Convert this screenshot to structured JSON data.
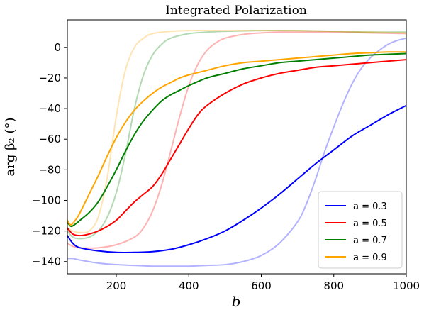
{
  "chart_data": {
    "type": "line",
    "title": "Integrated Polarization",
    "xlabel": "b",
    "ylabel": "arg β₂ (°)",
    "xlim": [
      65,
      1000
    ],
    "ylim": [
      -148,
      18
    ],
    "xticks": [
      200,
      400,
      600,
      800,
      1000
    ],
    "yticks": [
      0,
      -20,
      -40,
      -60,
      -80,
      -100,
      -120,
      -140
    ],
    "legend_position": "lower-right",
    "series": [
      {
        "name": "a = 0.3",
        "color": "#0000ff",
        "opacity": 1,
        "x": [
          65,
          80,
          100,
          150,
          200,
          250,
          300,
          350,
          400,
          450,
          500,
          550,
          600,
          650,
          700,
          750,
          800,
          850,
          900,
          950,
          1000
        ],
        "y": [
          -123,
          -128,
          -131,
          -133,
          -134,
          -134,
          -133.5,
          -132,
          -129,
          -125,
          -120,
          -113,
          -105,
          -96,
          -86,
          -76,
          -67,
          -58,
          -51,
          -44,
          -38
        ]
      },
      {
        "name": "a = 0.5",
        "color": "#ff0000",
        "opacity": 1,
        "x": [
          65,
          80,
          100,
          125,
          150,
          175,
          200,
          225,
          250,
          275,
          300,
          325,
          350,
          375,
          400,
          425,
          450,
          500,
          550,
          600,
          650,
          700,
          750,
          800,
          850,
          900,
          950,
          1000
        ],
        "y": [
          -118,
          -122,
          -123,
          -122,
          -120,
          -117,
          -113,
          -107,
          -101,
          -96,
          -91,
          -83,
          -73,
          -63,
          -53,
          -44,
          -38,
          -30,
          -24,
          -20,
          -17,
          -15,
          -13,
          -12,
          -11,
          -10,
          -9,
          -8
        ]
      },
      {
        "name": "a = 0.7",
        "color": "#008000",
        "opacity": 1,
        "x": [
          65,
          75,
          90,
          100,
          125,
          150,
          175,
          200,
          225,
          250,
          275,
          300,
          325,
          350,
          375,
          400,
          450,
          500,
          550,
          600,
          650,
          700,
          750,
          800,
          850,
          900,
          950,
          1000
        ],
        "y": [
          -114,
          -117,
          -115,
          -113,
          -108,
          -101,
          -91,
          -80,
          -68,
          -57,
          -48,
          -41,
          -35,
          -31,
          -28,
          -25,
          -20,
          -17,
          -14,
          -12,
          -10,
          -9,
          -8,
          -7,
          -6,
          -5,
          -4.5,
          -4
        ]
      },
      {
        "name": "a = 0.9",
        "color": "#ffa500",
        "opacity": 1,
        "x": [
          65,
          75,
          90,
          100,
          125,
          150,
          175,
          200,
          225,
          250,
          275,
          300,
          325,
          350,
          375,
          400,
          450,
          500,
          550,
          600,
          650,
          700,
          750,
          800,
          850,
          900,
          950,
          1000
        ],
        "y": [
          -113,
          -116,
          -112,
          -108,
          -96,
          -84,
          -71,
          -59,
          -49,
          -41,
          -35,
          -30,
          -26,
          -23,
          -20,
          -18,
          -15,
          -12,
          -10,
          -9,
          -8,
          -7,
          -6,
          -5,
          -4,
          -3.5,
          -3,
          -3
        ]
      },
      {
        "color": "#0000ff",
        "opacity": 0.3,
        "x": [
          65,
          80,
          100,
          150,
          200,
          250,
          300,
          350,
          400,
          450,
          500,
          550,
          600,
          650,
          700,
          725,
          750,
          775,
          800,
          825,
          850,
          875,
          900,
          925,
          950,
          975,
          1000
        ],
        "y": [
          -138,
          -138,
          -139,
          -141,
          -142,
          -142.5,
          -143,
          -143,
          -143,
          -142.5,
          -142,
          -140,
          -136,
          -128,
          -114,
          -102,
          -86,
          -68,
          -52,
          -37,
          -24,
          -14,
          -7,
          -2,
          2,
          4.5,
          6
        ]
      },
      {
        "color": "#ff0000",
        "opacity": 0.3,
        "x": [
          65,
          80,
          100,
          150,
          200,
          250,
          275,
          300,
          325,
          350,
          375,
          400,
          425,
          450,
          475,
          500,
          550,
          600,
          650,
          700,
          800,
          900,
          1000
        ],
        "y": [
          -128,
          -130,
          -131,
          -131,
          -129,
          -124,
          -118,
          -107,
          -90,
          -68,
          -45,
          -25,
          -11,
          -2,
          3,
          6,
          8.5,
          9.5,
          10,
          10,
          10,
          9.5,
          9
        ]
      },
      {
        "color": "#008000",
        "opacity": 0.3,
        "x": [
          65,
          80,
          100,
          125,
          150,
          175,
          200,
          225,
          250,
          275,
          300,
          325,
          350,
          400,
          450,
          500,
          600,
          700,
          800,
          900,
          1000
        ],
        "y": [
          -120,
          -124,
          -125,
          -124,
          -120,
          -111,
          -95,
          -70,
          -40,
          -18,
          -5,
          2,
          6,
          9,
          10,
          10.5,
          11,
          11,
          10.5,
          10,
          10
        ]
      },
      {
        "color": "#ffa500",
        "opacity": 0.3,
        "x": [
          65,
          80,
          100,
          125,
          150,
          175,
          200,
          225,
          250,
          275,
          300,
          350,
          400,
          500,
          600,
          700,
          800,
          900,
          1000
        ],
        "y": [
          -118,
          -120,
          -121,
          -120,
          -111,
          -85,
          -45,
          -15,
          0,
          6,
          9,
          10.5,
          11,
          11,
          11,
          11,
          10.5,
          10,
          9.5
        ]
      }
    ]
  }
}
